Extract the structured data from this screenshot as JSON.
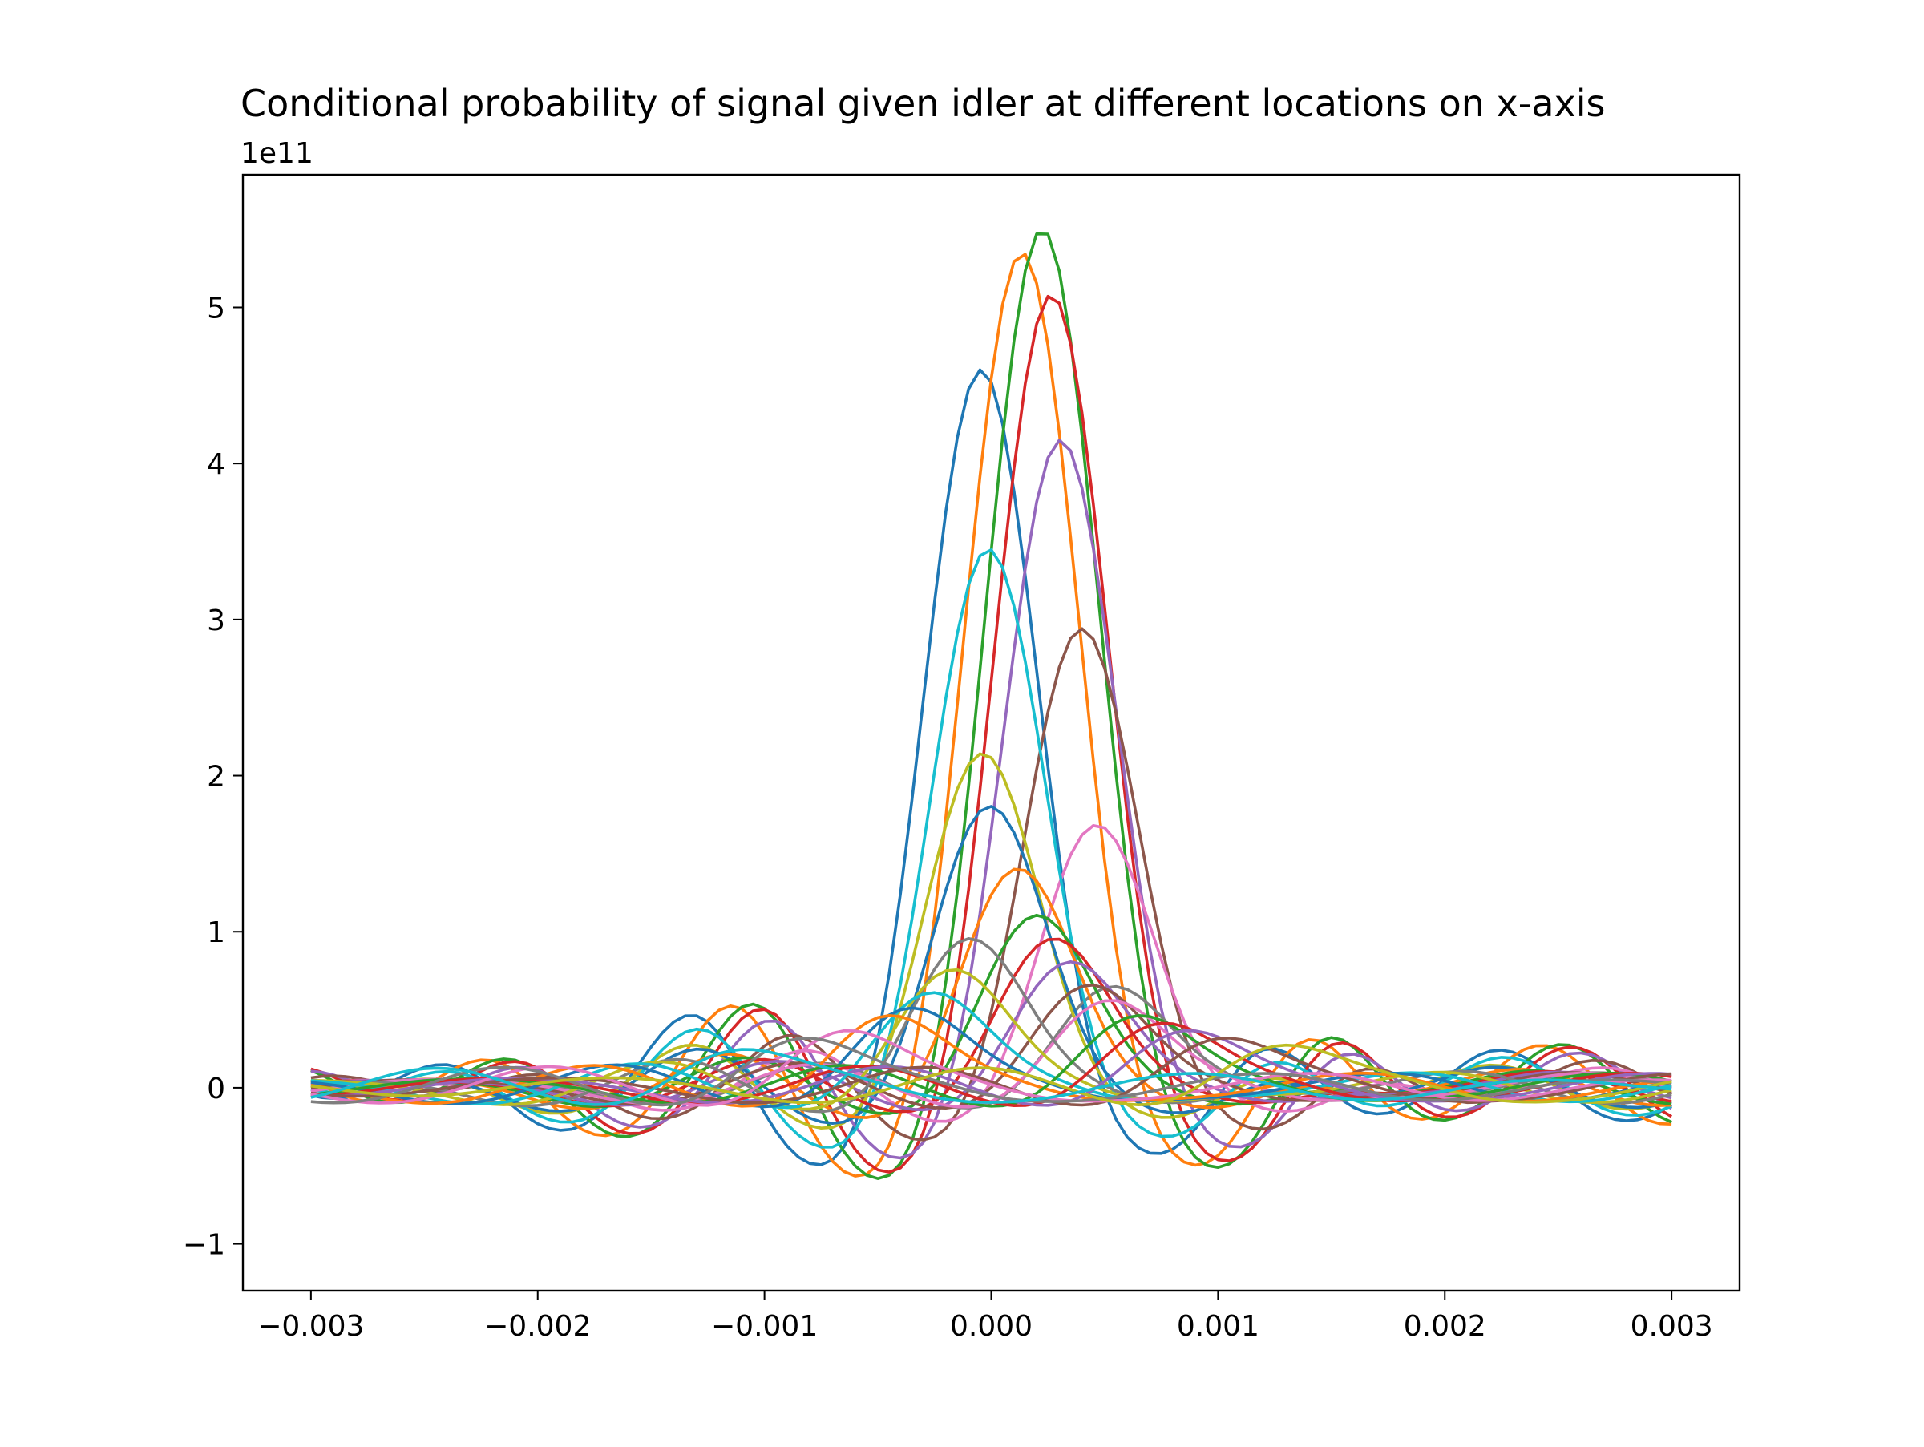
{
  "chart_data": {
    "type": "line",
    "title": "Conditional probability of signal given idler at different locations on x-axis",
    "xlabel": "",
    "ylabel": "",
    "offset_text": "1e11",
    "y_scale_factor": 100000000000.0,
    "xlim": [
      -0.0033,
      0.0033
    ],
    "ylim": [
      -1.3,
      5.85
    ],
    "x_ticks": [
      -0.003,
      -0.002,
      -0.001,
      0.0,
      0.001,
      0.002,
      0.003
    ],
    "x_tick_labels": [
      "−0.003",
      "−0.002",
      "−0.001",
      "0.000",
      "0.001",
      "0.002",
      "0.003"
    ],
    "y_ticks": [
      -1,
      0,
      1,
      2,
      3,
      4,
      5
    ],
    "y_tick_labels": [
      "−1",
      "0",
      "1",
      "2",
      "3",
      "4",
      "5"
    ],
    "grid": false,
    "legend": "none",
    "x_range": [
      -0.003,
      0.003
    ],
    "palette": [
      "#1f77b4",
      "#ff7f0e",
      "#2ca02c",
      "#d62728",
      "#9467bd",
      "#8c564b",
      "#e377c2",
      "#7f7f7f",
      "#bcbd22",
      "#17becf"
    ],
    "series": [
      {
        "center": -5e-05,
        "peak": 4.6,
        "color": "#1f77b4"
      },
      {
        "center": 0.00013,
        "peak": 5.35,
        "color": "#ff7f0e"
      },
      {
        "center": 0.00022,
        "peak": 5.5,
        "color": "#2ca02c"
      },
      {
        "center": 0.00026,
        "peak": 5.08,
        "color": "#d62728"
      },
      {
        "center": 0.0003,
        "peak": 4.15,
        "color": "#9467bd"
      },
      {
        "center": 0.00039,
        "peak": 2.94,
        "color": "#8c564b"
      },
      {
        "center": 0.00045,
        "peak": 1.68,
        "color": "#e377c2"
      },
      {
        "center": 0.0005,
        "peak": 0.64,
        "color": "#7f7f7f"
      },
      {
        "center": -5e-05,
        "peak": 2.14,
        "color": "#bcbd22"
      },
      {
        "center": -2e-05,
        "peak": 3.45,
        "color": "#17becf"
      },
      {
        "center": -2e-05,
        "peak": 1.8,
        "color": "#1f77b4"
      },
      {
        "center": 0.0001,
        "peak": 1.4,
        "color": "#ff7f0e"
      },
      {
        "center": 0.00018,
        "peak": 1.1,
        "color": "#2ca02c"
      },
      {
        "center": 0.00025,
        "peak": 0.95,
        "color": "#d62728"
      },
      {
        "center": 0.00032,
        "peak": 0.8,
        "color": "#9467bd"
      },
      {
        "center": 0.0004,
        "peak": 0.65,
        "color": "#8c564b"
      },
      {
        "center": 0.00048,
        "peak": 0.55,
        "color": "#e377c2"
      },
      {
        "center": -0.00012,
        "peak": 0.95,
        "color": "#7f7f7f"
      },
      {
        "center": -0.0002,
        "peak": 0.75,
        "color": "#bcbd22"
      },
      {
        "center": -0.0003,
        "peak": 0.6,
        "color": "#17becf"
      },
      {
        "center": -0.0004,
        "peak": 0.5,
        "color": "#1f77b4"
      },
      {
        "center": -0.0005,
        "peak": 0.45,
        "color": "#ff7f0e"
      },
      {
        "center": 0.0006,
        "peak": 0.45,
        "color": "#2ca02c"
      },
      {
        "center": 0.0007,
        "peak": 0.4,
        "color": "#d62728"
      },
      {
        "center": 0.0008,
        "peak": 0.35,
        "color": "#9467bd"
      },
      {
        "center": 0.00095,
        "peak": 0.3,
        "color": "#8c564b"
      },
      {
        "center": -0.0007,
        "peak": 0.35,
        "color": "#e377c2"
      },
      {
        "center": -0.0009,
        "peak": 0.3,
        "color": "#7f7f7f"
      },
      {
        "center": 0.0012,
        "peak": 0.25,
        "color": "#bcbd22"
      },
      {
        "center": -0.0012,
        "peak": 0.22,
        "color": "#17becf"
      }
    ]
  }
}
